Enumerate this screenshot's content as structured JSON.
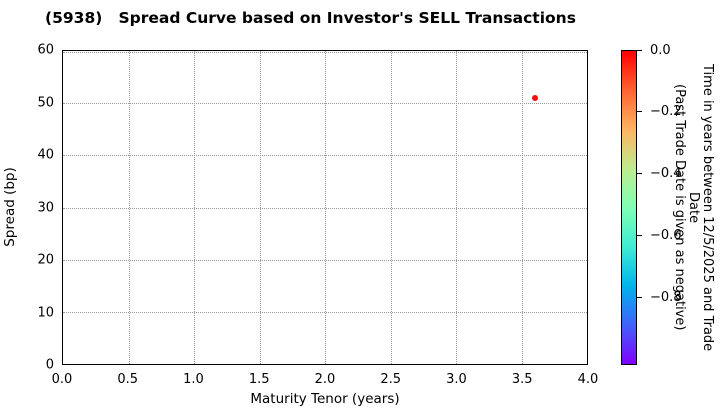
{
  "title": "(5938)   Spread Curve based on Investor's SELL Transactions",
  "chart_data": {
    "type": "scatter",
    "title": "(5938)   Spread Curve based on Investor's SELL Transactions",
    "xlabel": "Maturity Tenor (years)",
    "ylabel": "Spread (bp)",
    "xlim": [
      0.0,
      4.0
    ],
    "ylim": [
      0,
      60
    ],
    "grid": true,
    "grid_style": "dotted",
    "x_tick_labels": [
      "0.0",
      "0.5",
      "1.0",
      "1.5",
      "2.0",
      "2.5",
      "3.0",
      "3.5",
      "4.0"
    ],
    "y_tick_labels_top_to_bottom": [
      "60",
      "50",
      "40",
      "30",
      "20",
      "10",
      "0"
    ],
    "points": [
      {
        "x": 3.6,
        "y": 51,
        "colorbar_value": 0.0,
        "color": "#f01010"
      }
    ],
    "colorbar": {
      "label": "Time in years between 12/5/2025 and Trade Date\n(Past Trade Date is given as negative)",
      "tick_labels": [
        "0.0",
        "−0.2",
        "−0.4",
        "−0.6",
        "−0.8"
      ],
      "tick_values": [
        0.0,
        -0.2,
        -0.4,
        -0.6,
        -0.8
      ],
      "range_top_to_bottom": [
        0.0,
        -1.02
      ],
      "colormap": "rainbow",
      "gradient_top_to_bottom": [
        "#ff0000",
        "#ff6232",
        "#ffb461",
        "#bfec8e",
        "#80ffb4",
        "#40ecd4",
        "#00b4ec",
        "#4062fa",
        "#8000ff"
      ]
    }
  }
}
